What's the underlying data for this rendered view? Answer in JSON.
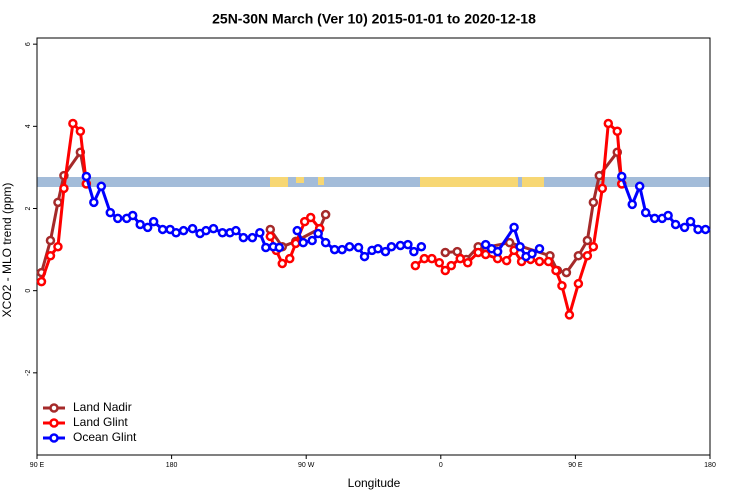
{
  "chart_data": {
    "type": "line",
    "title": "25N-30N March (Ver 10)   2015-01-01 to 2020-12-18",
    "x_label": "Longitude",
    "y_label": "XCO2 - MLO trend (ppm)",
    "xlim": [
      90,
      540
    ],
    "ylim": [
      -4,
      6.15
    ],
    "xticks": [
      {
        "value": 90,
        "label": "90 E"
      },
      180,
      {
        "value": 270,
        "label": "90 W"
      },
      {
        "value": 360,
        "label": "0"
      },
      {
        "value": 450,
        "label": "90 E"
      },
      180
    ],
    "yticks": [
      -2,
      0,
      2,
      4,
      6
    ],
    "legend": "bottom-left",
    "series": [
      {
        "name": "Land Nadir",
        "color": "#a52a2a",
        "x": [
          93,
          99,
          104,
          108,
          119,
          123,
          null,
          246,
          254,
          263,
          279,
          283,
          null,
          363,
          371,
          377,
          385,
          390,
          406,
          433,
          438,
          444,
          452,
          458,
          462,
          466,
          478,
          481
        ],
        "values": [
          0.44,
          1.22,
          2.15,
          2.8,
          3.37,
          2.6,
          null,
          1.49,
          1.07,
          1.2,
          1.51,
          1.85,
          null,
          0.93,
          0.95,
          0.76,
          1.07,
          1.05,
          1.17,
          0.85,
          0.49,
          0.44,
          0.85,
          1.22,
          2.15,
          2.8,
          3.37,
          2.6
        ]
      },
      {
        "name": "Land Glint",
        "color": "#ff0000",
        "x": [
          93,
          99,
          104,
          108,
          114,
          119,
          123,
          null,
          246,
          250,
          254,
          259,
          263,
          269,
          273,
          279,
          null,
          343,
          349,
          354,
          359,
          363,
          367,
          373,
          378,
          385,
          390,
          398,
          404,
          409,
          414,
          420,
          426,
          432,
          437,
          441,
          446,
          452,
          458,
          462,
          468,
          472,
          478,
          481
        ],
        "values": [
          0.22,
          0.85,
          1.07,
          2.49,
          4.07,
          3.88,
          2.6,
          null,
          1.32,
          0.98,
          0.66,
          0.78,
          1.15,
          1.68,
          1.78,
          1.51,
          null,
          0.61,
          0.78,
          0.78,
          0.68,
          0.49,
          0.61,
          0.78,
          0.68,
          0.93,
          0.88,
          0.78,
          0.73,
          0.98,
          0.71,
          0.76,
          0.71,
          0.71,
          0.49,
          0.12,
          -0.59,
          0.17,
          0.85,
          1.07,
          2.49,
          4.07,
          3.88,
          2.6
        ]
      },
      {
        "name": "Ocean Glint",
        "color": "#0000ff",
        "x": [
          123,
          128,
          133,
          139,
          144,
          150,
          154,
          159,
          164,
          168,
          174,
          179,
          183,
          188,
          194,
          199,
          203,
          208,
          214,
          219,
          223,
          228,
          234,
          239,
          243,
          248,
          252,
          null,
          264,
          268,
          274,
          278,
          283,
          289,
          294,
          299,
          305,
          309,
          314,
          318,
          323,
          327,
          333,
          338,
          342,
          347,
          null,
          390,
          394,
          398,
          409,
          413,
          417,
          421,
          426,
          null,
          481,
          488,
          493,
          497,
          503,
          508,
          512,
          517,
          523,
          527,
          532,
          537
        ],
        "values": [
          2.78,
          2.15,
          2.54,
          1.9,
          1.76,
          1.76,
          1.83,
          1.61,
          1.54,
          1.68,
          1.49,
          1.49,
          1.41,
          1.46,
          1.51,
          1.39,
          1.46,
          1.51,
          1.41,
          1.41,
          1.46,
          1.29,
          1.29,
          1.41,
          1.05,
          1.07,
          1.05,
          null,
          1.46,
          1.17,
          1.22,
          1.39,
          1.17,
          1.0,
          1.0,
          1.07,
          1.05,
          0.83,
          0.98,
          1.02,
          0.95,
          1.07,
          1.1,
          1.12,
          0.95,
          1.07,
          null,
          1.12,
          1.02,
          0.95,
          1.54,
          1.07,
          0.83,
          0.9,
          1.02,
          null,
          2.78,
          2.1,
          2.54,
          1.9,
          1.76,
          1.76,
          1.83,
          1.61,
          1.54,
          1.68,
          1.49,
          1.49
        ]
      }
    ]
  }
}
